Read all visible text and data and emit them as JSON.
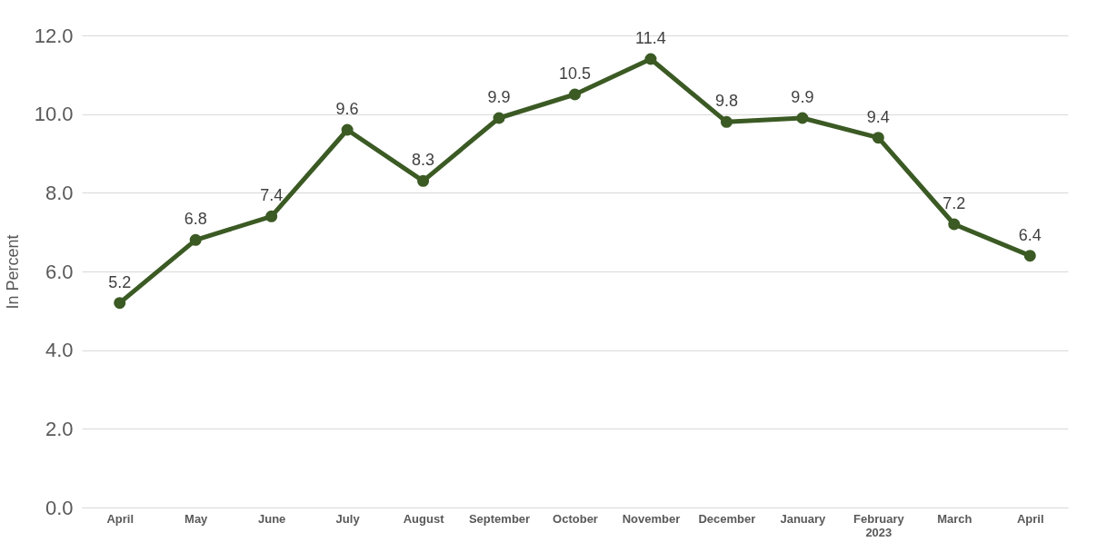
{
  "chart_data": {
    "type": "line",
    "ylabel": "In Percent",
    "categories": [
      "April",
      "May",
      "June",
      "July",
      "August",
      "September",
      "October",
      "November",
      "December",
      "January",
      "February\n2023",
      "March",
      "April"
    ],
    "series": [
      {
        "color": "#3b5a24",
        "values": [
          5.2,
          6.8,
          7.4,
          9.6,
          8.3,
          9.9,
          10.5,
          11.4,
          9.8,
          9.9,
          9.4,
          7.2,
          6.4
        ]
      }
    ],
    "ylim": [
      0,
      12
    ],
    "yticks": [
      {
        "value": 0,
        "label": "0.0"
      },
      {
        "value": 2,
        "label": "2.0"
      },
      {
        "value": 4,
        "label": "4.0"
      },
      {
        "value": 6,
        "label": "6.0"
      },
      {
        "value": 8,
        "label": "8.0"
      },
      {
        "value": 10,
        "label": "10.0"
      },
      {
        "value": 12,
        "label": "12.0"
      }
    ],
    "grid": "y",
    "marker": "circle",
    "line_style": "solid",
    "data_labels": true,
    "legend": false
  }
}
